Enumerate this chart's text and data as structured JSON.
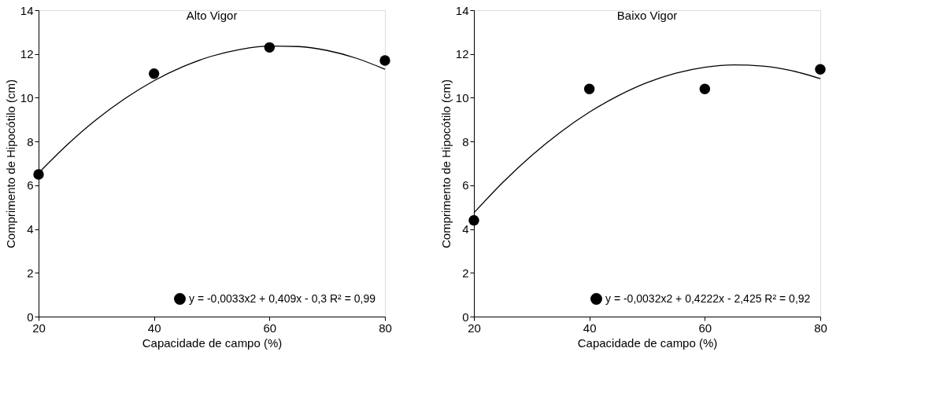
{
  "chart_data": [
    {
      "type": "scatter",
      "title": "Alto Vigor",
      "xlabel": "Capacidade de campo (%)",
      "ylabel": "Comprimento de Hipocótilo (cm)",
      "xlim": [
        20,
        80
      ],
      "xticks": [
        20,
        40,
        60,
        80
      ],
      "ylim": [
        0,
        14
      ],
      "yticks": [
        0,
        2,
        4,
        6,
        8,
        10,
        12,
        14
      ],
      "grid": false,
      "legend": "bottom right",
      "series": [
        {
          "type": "scatter",
          "marker": "circle",
          "name": "y = -0,0033x2 + 0,409x - 0,3 R² = 0,99",
          "color": "#000000",
          "x": [
            20,
            40,
            60,
            80
          ],
          "values": [
            6.5,
            11.1,
            12.3,
            11.7
          ]
        },
        {
          "type": "line",
          "color": "#000000",
          "x": [
            20,
            25,
            30,
            35,
            40,
            45,
            50,
            55,
            60,
            65,
            70,
            75,
            80
          ],
          "values": [
            6.56,
            7.86,
            9.0,
            9.97,
            10.78,
            11.42,
            11.9,
            12.21,
            12.36,
            12.34,
            12.16,
            11.81,
            11.3
          ]
        }
      ]
    },
    {
      "type": "scatter",
      "title": "Baixo Vigor",
      "xlabel": "Capacidade de campo (%)",
      "ylabel": "Comprimento de Hipocótilo (cm)",
      "xlim": [
        20,
        80
      ],
      "xticks": [
        20,
        40,
        60,
        80
      ],
      "ylim": [
        0,
        14
      ],
      "yticks": [
        0,
        2,
        4,
        6,
        8,
        10,
        12,
        14
      ],
      "grid": false,
      "legend": "bottom right",
      "series": [
        {
          "type": "scatter",
          "marker": "circle",
          "name": "y = -0,0032x2 + 0,4222x - 2,425 R² = 0,92",
          "color": "#000000",
          "x": [
            20,
            40,
            60,
            80
          ],
          "values": [
            4.4,
            10.4,
            10.4,
            11.3
          ]
        },
        {
          "type": "line",
          "color": "#000000",
          "x": [
            20,
            25,
            30,
            35,
            40,
            45,
            50,
            55,
            60,
            65,
            70,
            75,
            80
          ],
          "values": [
            4.74,
            6.13,
            7.36,
            8.43,
            9.34,
            10.09,
            10.69,
            11.12,
            11.39,
            11.5,
            11.45,
            11.24,
            10.87
          ]
        }
      ]
    }
  ]
}
